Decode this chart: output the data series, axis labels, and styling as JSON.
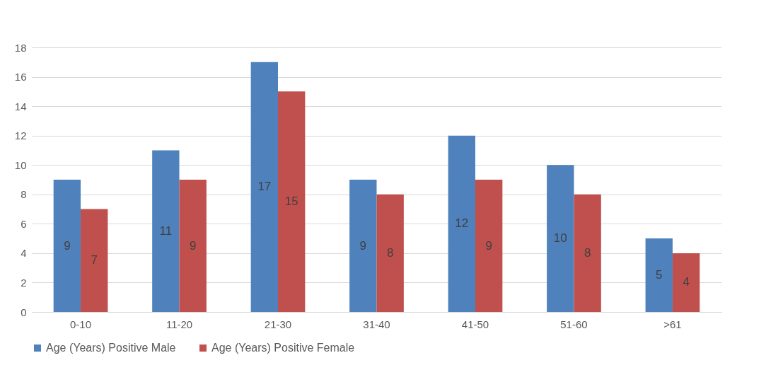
{
  "chart_data": {
    "type": "bar",
    "categories": [
      "0-10",
      "11-20",
      "21-30",
      "31-40",
      "41-50",
      "51-60",
      ">61"
    ],
    "series": [
      {
        "name": "Age (Years) Positive Male",
        "color": "#4f81bd",
        "values": [
          9,
          11,
          17,
          9,
          12,
          10,
          5
        ]
      },
      {
        "name": "Age (Years) Positive Female",
        "color": "#c0504d",
        "values": [
          7,
          9,
          15,
          8,
          9,
          8,
          4
        ]
      }
    ],
    "ylim": [
      0,
      18
    ],
    "yticks": [
      0,
      2,
      4,
      6,
      8,
      10,
      12,
      14,
      16,
      18
    ],
    "grid": "y",
    "legend": "bottom",
    "data_labels": true
  }
}
